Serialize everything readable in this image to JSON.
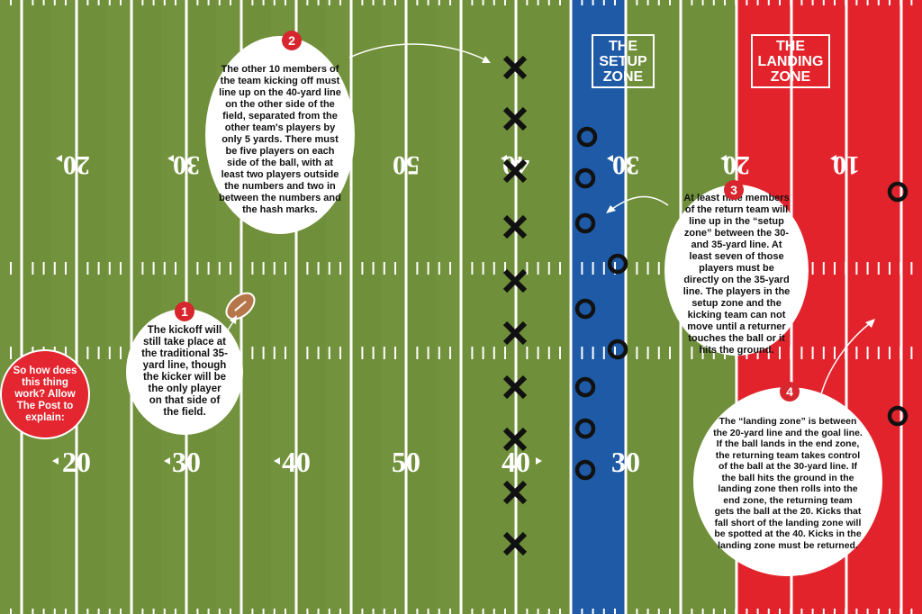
{
  "intro": "So how does this thing work? Allow The Post to explain:",
  "zones": {
    "setup": {
      "label": "THE\nSETUP\nZONE",
      "color": "#1f5aa6"
    },
    "landing": {
      "label": "THE\nLANDING\nZONE",
      "color": "#e3232b"
    }
  },
  "field_color": "#6f8f3a",
  "top_numbers": [
    "20",
    "30",
    "50",
    "40",
    "30",
    "20",
    "10"
  ],
  "bottom_numbers": [
    "20",
    "30",
    "40",
    "50",
    "40",
    "30"
  ],
  "callouts": [
    {
      "number": "1",
      "text": "The kickoff will still take place at the traditional 35-yard line, though the kicker will be the only player on that side of the field."
    },
    {
      "number": "2",
      "text": "The other 10 members of the team kicking off must line up on the 40-yard line on the other side of the field, separated from the other team's players by only 5 yards. There must be five players on each side of the ball, with at least two players outside the numbers and two in between the numbers and the hash marks."
    },
    {
      "number": "3",
      "text": "At least nine members of the return team will line up in the “setup zone” between the 30- and 35-yard line. At least seven of those players must be directly on the 35-yard line. The players in the setup zone and the kicking team can not move until a returner touches the ball or it hits the ground."
    },
    {
      "number": "4",
      "text": "The “landing zone” is between the 20-yard line and the goal line. If the ball lands in the end zone, the returning team takes control of the ball at the 30-yard line. If the ball hits the ground in the landing zone then rolls into the end zone, the returning team gets the ball at the 20. Kicks that fall short of the landing zone will be spotted at the 40. Kicks in the landing zone must be returned."
    }
  ]
}
